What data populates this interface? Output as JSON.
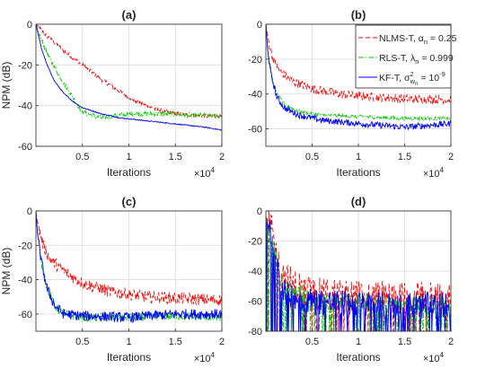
{
  "chart_data": [
    {
      "type": "line",
      "title": "(a)",
      "xlabel": "Iterations",
      "ylabel": "NPM (dB)",
      "x_exponent": "×10^4",
      "xlim": [
        0,
        2
      ],
      "ylim": [
        -60,
        0
      ],
      "xticks": [
        0.5,
        1,
        1.5,
        2
      ],
      "xtick_labels": [
        "0.5",
        "1",
        "1.5",
        "2"
      ],
      "yticks": [
        0,
        -20,
        -40,
        -60
      ],
      "ytick_labels": [
        "0",
        "-20",
        "-40",
        "-60"
      ],
      "grid": true,
      "legend": null,
      "series": [
        {
          "key": "nlms",
          "color": "#ff0000",
          "dash": "dashed",
          "noise": 1.0,
          "points": [
            [
              0,
              0
            ],
            [
              0.1,
              -5
            ],
            [
              0.3,
              -13
            ],
            [
              0.5,
              -20
            ],
            [
              0.7,
              -27
            ],
            [
              0.9,
              -33
            ],
            [
              1.1,
              -38.5
            ],
            [
              1.3,
              -42
            ],
            [
              1.5,
              -44
            ],
            [
              1.7,
              -45
            ],
            [
              2,
              -45.5
            ]
          ]
        },
        {
          "key": "rls",
          "color": "#00cc00",
          "dash": "dashdot",
          "noise": 1.2,
          "points": [
            [
              0,
              0
            ],
            [
              0.02,
              -3
            ],
            [
              0.08,
              -10
            ],
            [
              0.15,
              -17
            ],
            [
              0.3,
              -29
            ],
            [
              0.4,
              -36
            ],
            [
              0.48,
              -42
            ],
            [
              0.55,
              -44
            ],
            [
              0.7,
              -46
            ],
            [
              1.0,
              -44
            ],
            [
              1.3,
              -44
            ],
            [
              1.6,
              -44.5
            ],
            [
              2,
              -45
            ]
          ]
        },
        {
          "key": "kf",
          "color": "#0000ff",
          "dash": "solid",
          "noise": 0.25,
          "points": [
            [
              0,
              0
            ],
            [
              0.02,
              -4
            ],
            [
              0.06,
              -12
            ],
            [
              0.12,
              -20
            ],
            [
              0.2,
              -28
            ],
            [
              0.3,
              -34
            ],
            [
              0.4,
              -38
            ],
            [
              0.5,
              -41
            ],
            [
              0.7,
              -44
            ],
            [
              0.9,
              -46
            ],
            [
              1.2,
              -47.5
            ],
            [
              1.5,
              -49
            ],
            [
              1.8,
              -50.5
            ],
            [
              2,
              -52
            ]
          ]
        }
      ]
    },
    {
      "type": "line",
      "title": "(b)",
      "xlabel": "Iterations",
      "ylabel": "",
      "x_exponent": "×10^4",
      "xlim": [
        0,
        2
      ],
      "ylim": [
        -70,
        0
      ],
      "xticks": [
        0.5,
        1,
        1.5,
        2
      ],
      "xtick_labels": [
        "0.5",
        "1",
        "1.5",
        "2"
      ],
      "yticks": [
        0,
        -20,
        -40,
        -60
      ],
      "ytick_labels": [
        "0",
        "-20",
        "-40",
        "-60"
      ],
      "grid": true,
      "legend": {
        "placement": "top-right",
        "entries": [
          {
            "series": "nlms",
            "label": "NLMS-T, α",
            "sub": "n",
            "sup": "",
            "suffix": " = 0.25"
          },
          {
            "series": "rls",
            "label": "RLS-T, λ",
            "sub": "n",
            "sup": "",
            "suffix": " = 0.999"
          },
          {
            "series": "kf",
            "label": "KF-T, σ",
            "sub": "w",
            "subsub": "n",
            "sup": "2",
            "suffix": " = 10",
            "suffix_sup": "-9"
          }
        ]
      },
      "series": [
        {
          "key": "nlms",
          "color": "#ff0000",
          "dash": "dashed",
          "noise": 2.5,
          "points": [
            [
              0,
              0
            ],
            [
              0.03,
              -10
            ],
            [
              0.08,
              -20
            ],
            [
              0.15,
              -27
            ],
            [
              0.3,
              -33
            ],
            [
              0.5,
              -37
            ],
            [
              0.8,
              -40
            ],
            [
              1.2,
              -42
            ],
            [
              1.6,
              -43
            ],
            [
              2,
              -43
            ]
          ]
        },
        {
          "key": "rls",
          "color": "#00cc00",
          "dash": "dashdot",
          "noise": 1.0,
          "points": [
            [
              0,
              0
            ],
            [
              0.02,
              -15
            ],
            [
              0.06,
              -30
            ],
            [
              0.12,
              -40
            ],
            [
              0.2,
              -46
            ],
            [
              0.35,
              -50
            ],
            [
              0.6,
              -52
            ],
            [
              1.0,
              -53
            ],
            [
              1.5,
              -54
            ],
            [
              2,
              -54
            ]
          ]
        },
        {
          "key": "kf",
          "color": "#0000ff",
          "dash": "solid",
          "noise": 1.8,
          "points": [
            [
              0,
              0
            ],
            [
              0.02,
              -15
            ],
            [
              0.06,
              -30
            ],
            [
              0.12,
              -42
            ],
            [
              0.2,
              -48
            ],
            [
              0.35,
              -52
            ],
            [
              0.6,
              -55
            ],
            [
              1.0,
              -57
            ],
            [
              1.5,
              -59
            ],
            [
              2,
              -57
            ]
          ]
        }
      ]
    },
    {
      "type": "line",
      "title": "(c)",
      "xlabel": "Iterations",
      "ylabel": "NPM (dB)",
      "x_exponent": "×10^4",
      "xlim": [
        0,
        2
      ],
      "ylim": [
        -70,
        0
      ],
      "xticks": [
        0.5,
        1,
        1.5,
        2
      ],
      "xtick_labels": [
        "0.5",
        "1",
        "1.5",
        "2"
      ],
      "yticks": [
        0,
        -20,
        -40,
        -60
      ],
      "ytick_labels": [
        "0",
        "-20",
        "-40",
        "-60"
      ],
      "grid": true,
      "legend": null,
      "series": [
        {
          "key": "nlms",
          "color": "#ff0000",
          "dash": "dashed",
          "noise": 3.5,
          "points": [
            [
              0,
              0
            ],
            [
              0.03,
              -10
            ],
            [
              0.08,
              -20
            ],
            [
              0.15,
              -28
            ],
            [
              0.3,
              -35
            ],
            [
              0.5,
              -42
            ],
            [
              0.8,
              -47
            ],
            [
              1.2,
              -50
            ],
            [
              1.6,
              -51
            ],
            [
              2,
              -52
            ]
          ]
        },
        {
          "key": "rls",
          "color": "#00cc00",
          "dash": "dashdot",
          "noise": 2.5,
          "points": [
            [
              0,
              0
            ],
            [
              0.02,
              -15
            ],
            [
              0.06,
              -30
            ],
            [
              0.12,
              -45
            ],
            [
              0.2,
              -55
            ],
            [
              0.3,
              -60
            ],
            [
              0.5,
              -62
            ],
            [
              1.0,
              -62
            ],
            [
              1.5,
              -61
            ],
            [
              2,
              -62
            ]
          ]
        },
        {
          "key": "kf",
          "color": "#0000ff",
          "dash": "solid",
          "noise": 3.0,
          "points": [
            [
              0,
              0
            ],
            [
              0.02,
              -15
            ],
            [
              0.06,
              -30
            ],
            [
              0.12,
              -45
            ],
            [
              0.2,
              -55
            ],
            [
              0.3,
              -60
            ],
            [
              0.5,
              -61
            ],
            [
              1.0,
              -62
            ],
            [
              1.5,
              -60
            ],
            [
              2,
              -60
            ]
          ]
        }
      ]
    },
    {
      "type": "line",
      "title": "(d)",
      "xlabel": "Iterations",
      "ylabel": "",
      "x_exponent": "×10^4",
      "xlim": [
        0,
        2
      ],
      "ylim": [
        -80,
        0
      ],
      "xticks": [
        0.5,
        1,
        1.5,
        2
      ],
      "xtick_labels": [
        "0.5",
        "1",
        "1.5",
        "2"
      ],
      "yticks": [
        0,
        -20,
        -40,
        -60,
        -80
      ],
      "ytick_labels": [
        "0",
        "-20",
        "-40",
        "-60",
        "-80"
      ],
      "grid": true,
      "legend": null,
      "series": [
        {
          "key": "nlms",
          "color": "#ff0000",
          "dash": "dashed",
          "noise": 11,
          "points": [
            [
              0,
              -5
            ],
            [
              0.05,
              -10
            ],
            [
              0.1,
              -25
            ],
            [
              0.2,
              -45
            ],
            [
              0.5,
              -55
            ],
            [
              1.0,
              -57
            ],
            [
              1.5,
              -58
            ],
            [
              2,
              -58
            ]
          ]
        },
        {
          "key": "rls",
          "color": "#00cc00",
          "dash": "dashdot",
          "noise": 6,
          "points": [
            [
              0,
              -5
            ],
            [
              0.05,
              -15
            ],
            [
              0.1,
              -30
            ],
            [
              0.2,
              -50
            ],
            [
              0.5,
              -60
            ],
            [
              1.0,
              -60
            ],
            [
              1.5,
              -62
            ],
            [
              2,
              -62
            ]
          ]
        },
        {
          "key": "kf",
          "color": "#0000ff",
          "dash": "solid",
          "noise": 9,
          "points": [
            [
              0,
              -5
            ],
            [
              0.05,
              -15
            ],
            [
              0.1,
              -30
            ],
            [
              0.2,
              -55
            ],
            [
              0.5,
              -60
            ],
            [
              1.0,
              -62
            ],
            [
              1.5,
              -63
            ],
            [
              2,
              -63
            ]
          ]
        }
      ]
    }
  ]
}
